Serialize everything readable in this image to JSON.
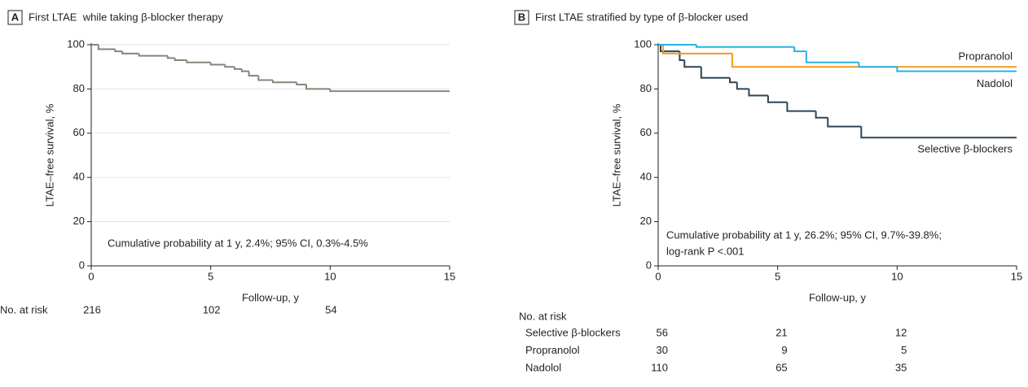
{
  "chart_data": [
    {
      "type": "line",
      "panel": "A",
      "title": "First LTAE  while taking β-blocker therapy",
      "xlabel": "Follow-up, y",
      "ylabel": "LTAE–free survival, %",
      "xlim": [
        0,
        15
      ],
      "ylim": [
        0,
        100
      ],
      "xticks": [
        0,
        5,
        10,
        15
      ],
      "yticks": [
        0,
        20,
        40,
        60,
        80,
        100
      ],
      "grid": true,
      "series": [
        {
          "name": null,
          "color": "#8c8279",
          "x": [
            0,
            0.3,
            1.0,
            1.3,
            2.0,
            3.2,
            3.5,
            4.0,
            5.0,
            5.6,
            6.0,
            6.3,
            6.6,
            7.0,
            7.6,
            8.6,
            9.0,
            10.0,
            15
          ],
          "values": [
            100,
            98,
            97,
            96,
            95,
            94,
            93,
            92,
            91,
            90,
            89,
            88,
            86,
            84,
            83,
            82,
            80,
            79,
            79
          ]
        }
      ],
      "annotation": [
        "Cumulative probability at 1 y, 2.4%; 95% CI, 0.3%-4.5%"
      ],
      "at_risk": {
        "label": "No. at risk",
        "x": [
          0,
          5,
          10
        ],
        "rows": [
          {
            "name": null,
            "values": [
              216,
              102,
              54
            ]
          }
        ]
      }
    },
    {
      "type": "line",
      "panel": "B",
      "title": "First LTAE stratified by type of β-blocker used",
      "xlabel": "Follow-up, y",
      "ylabel": "LTAE–free survival, %",
      "xlim": [
        0,
        15
      ],
      "ylim": [
        0,
        100
      ],
      "xticks": [
        0,
        5,
        10,
        15
      ],
      "yticks": [
        0,
        20,
        40,
        60,
        80,
        100
      ],
      "grid": false,
      "series": [
        {
          "name": "Selective β-blockers",
          "color": "#2b4657",
          "x": [
            0,
            0.1,
            0.9,
            1.1,
            1.8,
            3.0,
            3.3,
            3.8,
            4.6,
            5.4,
            6.6,
            7.1,
            8.5,
            15
          ],
          "values": [
            100,
            97,
            93,
            90,
            85,
            83,
            80,
            77,
            74,
            70,
            67,
            63,
            58,
            58
          ]
        },
        {
          "name": "Propranolol",
          "color": "#f29c1f",
          "x": [
            0,
            0.2,
            3.1,
            15
          ],
          "values": [
            100,
            96,
            90,
            90
          ]
        },
        {
          "name": "Nadolol",
          "color": "#27b2e3",
          "x": [
            0,
            1.6,
            5.7,
            6.2,
            8.4,
            10.0,
            15
          ],
          "values": [
            100,
            99,
            97,
            92,
            90,
            88,
            88
          ]
        }
      ],
      "annotation": [
        "Cumulative probability at 1 y, 26.2%; 95% CI, 9.7%-39.8%;",
        "log-rank P <.001"
      ],
      "at_risk": {
        "label": "No. at risk",
        "x": [
          0,
          5,
          10
        ],
        "rows": [
          {
            "name": "Selective β-blockers",
            "values": [
              56,
              21,
              12
            ]
          },
          {
            "name": "Propranolol",
            "values": [
              30,
              9,
              5
            ]
          },
          {
            "name": "Nadolol",
            "values": [
              110,
              65,
              35
            ]
          }
        ]
      }
    }
  ]
}
